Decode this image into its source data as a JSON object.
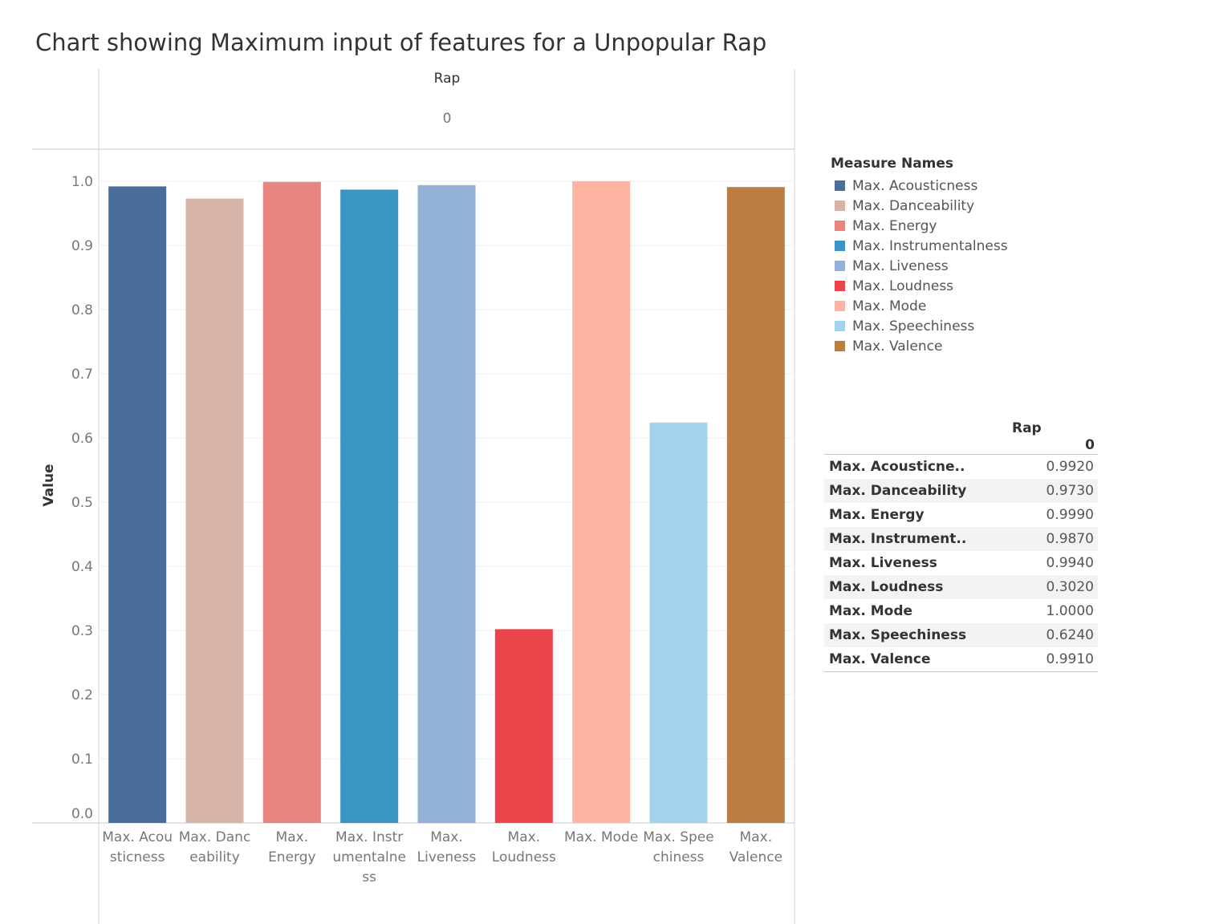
{
  "chart_data": {
    "type": "bar",
    "title": "Chart showing Maximum input of features for a Unpopular Rap",
    "column_header": "Rap",
    "column_subheader": "0",
    "ylabel": "Value",
    "ylim": [
      0,
      1.0
    ],
    "yticks": [
      "0.0",
      "0.1",
      "0.2",
      "0.3",
      "0.4",
      "0.5",
      "0.6",
      "0.7",
      "0.8",
      "0.9",
      "1.0"
    ],
    "grid": true,
    "categories": [
      "Max. Acousticness",
      "Max. Danceability",
      "Max. Energy",
      "Max. Instrumentalness",
      "Max. Liveness",
      "Max. Loudness",
      "Max. Mode",
      "Max. Speechiness",
      "Max. Valence"
    ],
    "category_tick_labels": [
      [
        "Max. Acou",
        "sticness"
      ],
      [
        "Max. Danc",
        "eability"
      ],
      [
        "Max.",
        "Energy"
      ],
      [
        "Max. Instr",
        "umentalne",
        "ss"
      ],
      [
        "Max.",
        "Liveness"
      ],
      [
        "Max.",
        "Loudness"
      ],
      [
        "Max. Mode"
      ],
      [
        "Max. Spee",
        "chiness"
      ],
      [
        "Max.",
        "Valence"
      ]
    ],
    "values": [
      0.992,
      0.973,
      0.999,
      0.987,
      0.994,
      0.302,
      1.0,
      0.624,
      0.991
    ],
    "colors": [
      "#4a6e9b",
      "#d6b3a5",
      "#e8857f",
      "#3a94c4",
      "#92b2d7",
      "#eb444b",
      "#ffb4a1",
      "#a3d2ef",
      "#bc7f43"
    ],
    "legend": {
      "title": "Measure Names",
      "placement": "right"
    }
  },
  "side_table": {
    "column_header": "Rap",
    "column_subheader": "0",
    "rows": [
      {
        "label": "Max. Acousticne..",
        "value": "0.9920"
      },
      {
        "label": "Max. Danceability",
        "value": "0.9730"
      },
      {
        "label": "Max. Energy",
        "value": "0.9990"
      },
      {
        "label": "Max. Instrument..",
        "value": "0.9870"
      },
      {
        "label": "Max. Liveness",
        "value": "0.9940"
      },
      {
        "label": "Max. Loudness",
        "value": "0.3020"
      },
      {
        "label": "Max. Mode",
        "value": "1.0000"
      },
      {
        "label": "Max. Speechiness",
        "value": "0.6240"
      },
      {
        "label": "Max. Valence",
        "value": "0.9910"
      }
    ]
  }
}
